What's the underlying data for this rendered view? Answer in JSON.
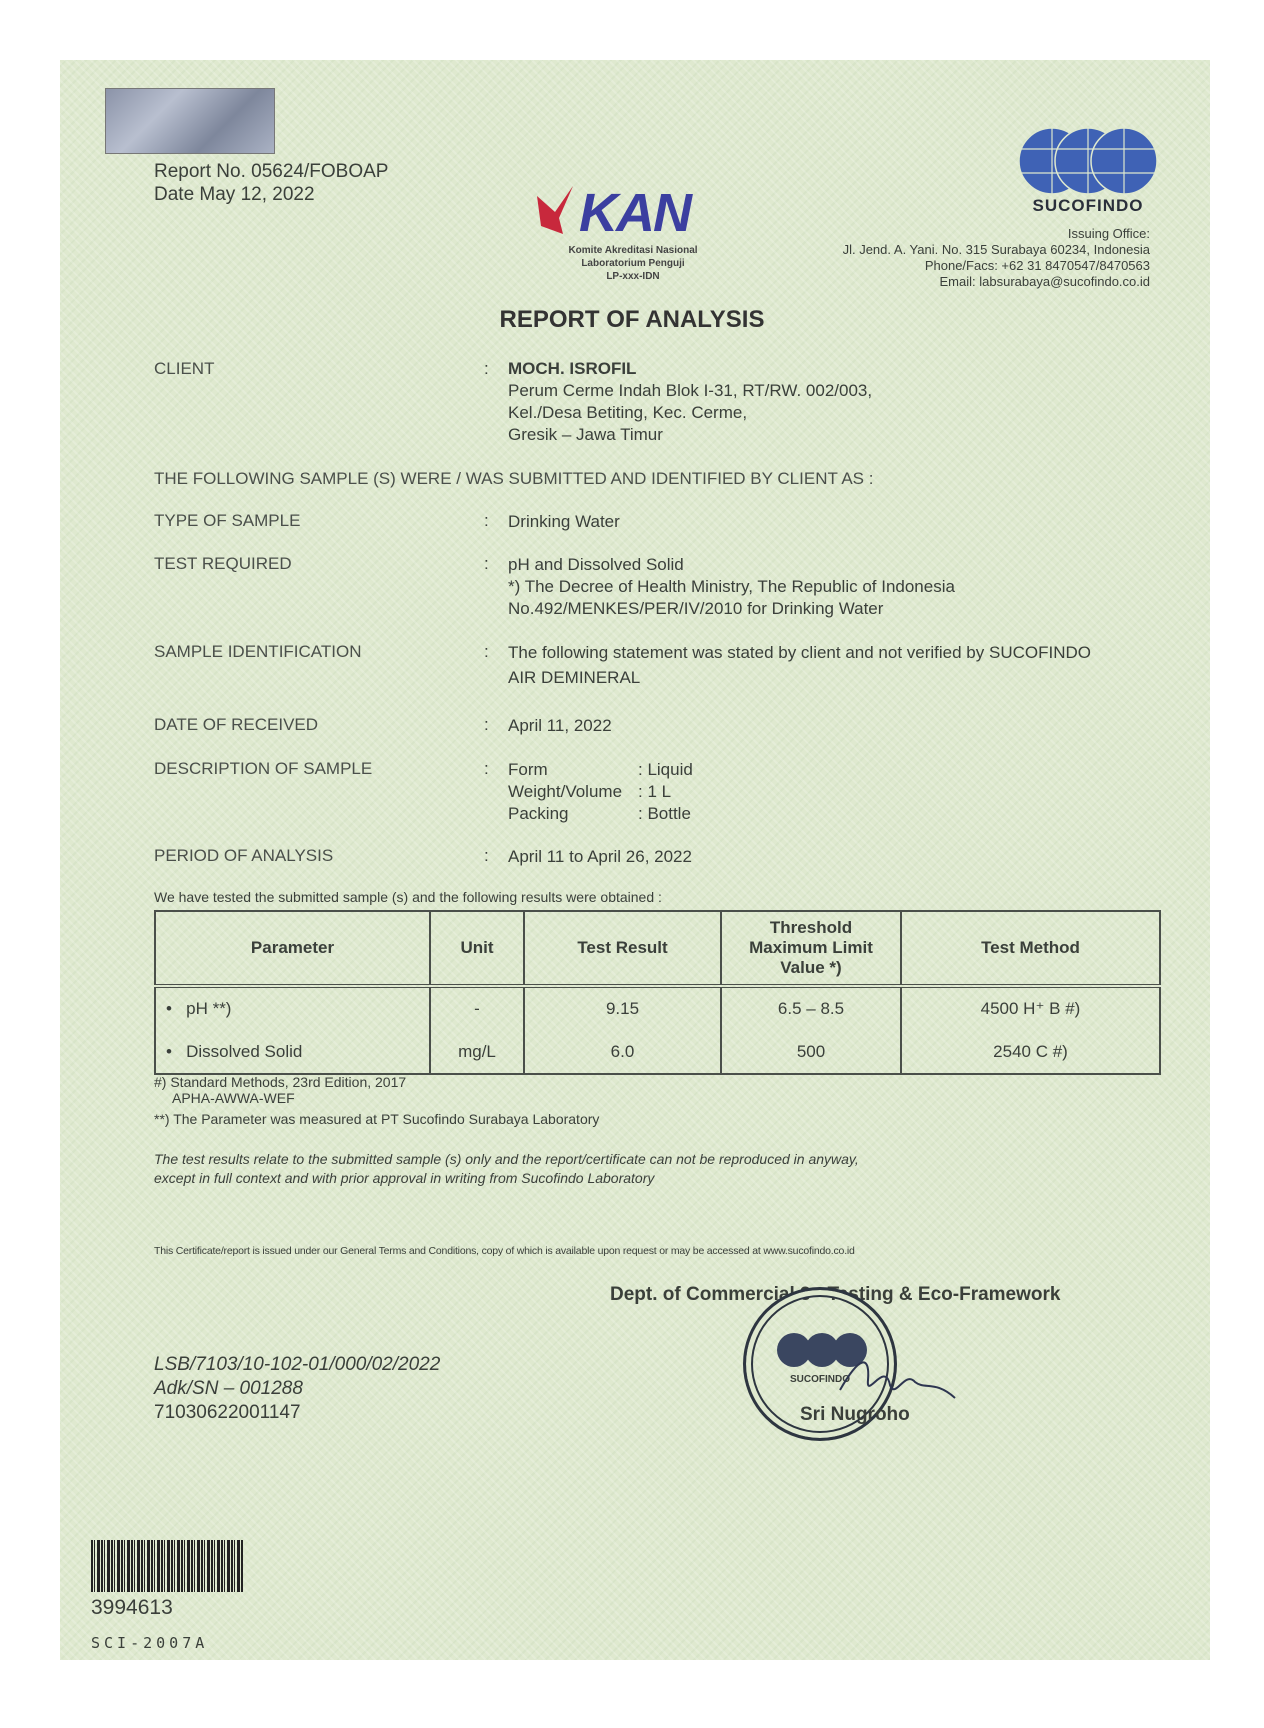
{
  "header": {
    "report_no": "Report No. 05624/FOBOAP",
    "date": "Date May 12, 2022"
  },
  "kan": {
    "logo": "KAN",
    "line1": "Komite Akreditasi Nasional",
    "line2": "Laboratorium Penguji",
    "line3": "LP-xxx-IDN"
  },
  "sucofindo": {
    "logo": "SUCOFINDO",
    "office_label": "Issuing Office:",
    "address": "Jl. Jend. A. Yani. No. 315 Surabaya 60234, Indonesia",
    "phone": "Phone/Facs: +62 31 8470547/8470563",
    "email": "Email: labsurabaya@sucofindo.co.id"
  },
  "title": "REPORT OF ANALYSIS",
  "fields": {
    "client_label": "CLIENT",
    "client_name": "MOCH. ISROFIL",
    "client_addr1": "Perum Cerme Indah Blok I-31, RT/RW. 002/003,",
    "client_addr2": "Kel./Desa Betiting, Kec. Cerme,",
    "client_addr3": "Gresik – Jawa Timur",
    "intro": "THE FOLLOWING SAMPLE (S) WERE / WAS SUBMITTED AND IDENTIFIED BY CLIENT AS :",
    "type_label": "TYPE OF SAMPLE",
    "type_value": "Drinking Water",
    "test_label": "TEST REQUIRED",
    "test_value1": "pH and Dissolved Solid",
    "test_value2": "*) The Decree of Health Ministry, The Republic of Indonesia",
    "test_value3": "No.492/MENKES/PER/IV/2010 for Drinking Water",
    "ident_label": "SAMPLE IDENTIFICATION",
    "ident_value1": "The following statement was stated by client and not verified by SUCOFINDO",
    "ident_value2": "AIR DEMINERAL",
    "date_label": "DATE OF RECEIVED",
    "date_value": "April 11, 2022",
    "desc_label": "DESCRIPTION OF SAMPLE",
    "desc_form": "Form",
    "desc_form_v": ": Liquid",
    "desc_weight": "Weight/Volume",
    "desc_weight_v": ": 1 L",
    "desc_pack": "Packing",
    "desc_pack_v": ": Bottle",
    "period_label": "PERIOD OF ANALYSIS",
    "period_value": "April 11 to April 26, 2022",
    "colon": ":"
  },
  "results": {
    "intro": "We have tested the submitted sample (s) and the following results were obtained :",
    "headers": [
      "Parameter",
      "Unit",
      "Test Result",
      "Threshold Maximum Limit Value *)",
      "Test Method"
    ],
    "rows": [
      [
        "pH **)",
        "-",
        "9.15",
        "6.5 – 8.5",
        "4500 H⁺ B #)"
      ],
      [
        "Dissolved Solid",
        "mg/L",
        "6.0",
        "500",
        "2540 C #)"
      ]
    ]
  },
  "notes": {
    "n1": "#) Standard Methods, 23rd Edition, 2017",
    "n1b": "APHA-AWWA-WEF",
    "n2": "**) The Parameter was measured at PT Sucofindo Surabaya Laboratory",
    "disclaimer1": "The test results relate to the submitted sample (s) only and the report/certificate can not be reproduced in anyway,",
    "disclaimer2": "except in full context and with prior approval in writing from Sucofindo Laboratory",
    "terms": "This Certificate/report is issued under our General Terms and Conditions, copy of which is available upon request or may be accessed at www.sucofindo.co.id"
  },
  "signature": {
    "dept": "Dept. of Commercial 3 - Testing & Eco-Framework",
    "name": "Sri Nugroho",
    "stamp": "SUCOFINDO"
  },
  "refs": {
    "r1": "LSB/7103/10-102-01/000/02/2022",
    "r2": "Adk/SN – 001288",
    "r3": "71030622001147"
  },
  "barcode": {
    "number": "3994613",
    "code": "SCI-2007A"
  }
}
